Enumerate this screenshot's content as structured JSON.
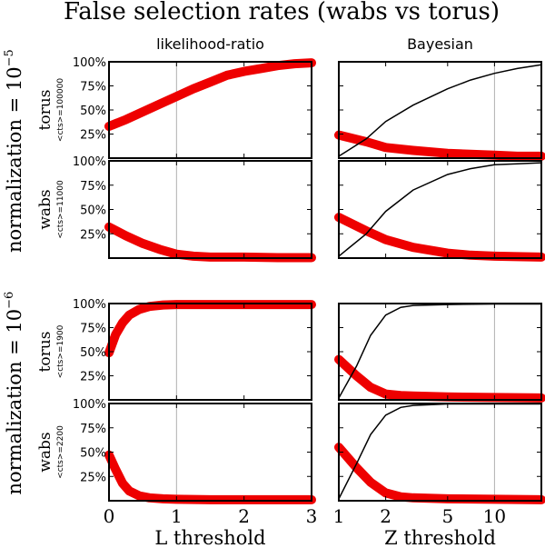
{
  "title": "False selection rates (wabs vs torus)",
  "chart_data": {
    "type": "line",
    "title": "False selection rates (wabs vs torus)",
    "columns": [
      {
        "title": "likelihood-ratio",
        "xlabel": "L threshold",
        "xscale": "linear",
        "xlim": [
          0,
          3
        ],
        "xticks": [
          0,
          1,
          2,
          3
        ],
        "xticklabels": [
          "0",
          "1",
          "2",
          "3"
        ],
        "vline": 1
      },
      {
        "title": "Bayesian",
        "xlabel": "Z threshold",
        "xscale": "log",
        "xlim": [
          1,
          20
        ],
        "xticks": [
          1,
          2,
          5,
          10
        ],
        "xticklabels": [
          "1",
          "2",
          "5",
          "10"
        ],
        "vline": 10
      }
    ],
    "yticklabels": [
      "25%",
      "50%",
      "75%",
      "100%"
    ],
    "ylim": [
      0,
      100
    ],
    "groups": [
      {
        "label": "normalization = ",
        "base": "10",
        "exponent": "−5",
        "rows": [
          0,
          1
        ]
      },
      {
        "label": "normalization = ",
        "base": "10",
        "exponent": "−6",
        "rows": [
          2,
          3
        ]
      }
    ],
    "rows": [
      {
        "model": "torus",
        "counts": "<cts>=100000",
        "lr_red": {
          "x": [
            0,
            0.25,
            0.5,
            0.75,
            1,
            1.25,
            1.5,
            1.75,
            2,
            2.25,
            2.5,
            2.75,
            3
          ],
          "y": [
            33,
            40,
            48,
            56,
            64,
            72,
            79,
            86,
            90,
            93,
            96,
            98,
            99
          ]
        },
        "bayes_red": {
          "x": [
            1,
            1.5,
            2,
            3,
            5,
            7,
            10,
            14,
            20
          ],
          "y": [
            24,
            17,
            11,
            8,
            5,
            4,
            3,
            2,
            2
          ]
        },
        "bayes_black": {
          "x": [
            1,
            1.5,
            2,
            3,
            5,
            7,
            10,
            14,
            20
          ],
          "y": [
            2,
            20,
            38,
            55,
            72,
            81,
            88,
            93,
            97
          ]
        }
      },
      {
        "model": "wabs",
        "counts": "<cts>=11000",
        "lr_red": {
          "x": [
            0,
            0.25,
            0.5,
            0.75,
            1,
            1.25,
            1.5,
            2,
            2.5,
            3
          ],
          "y": [
            32,
            23,
            15,
            9,
            4,
            2,
            1,
            1,
            0.5,
            0.5
          ]
        },
        "bayes_red": {
          "x": [
            1,
            1.5,
            2,
            3,
            5,
            7,
            10,
            14,
            20
          ],
          "y": [
            42,
            28,
            19,
            11,
            5,
            3,
            2,
            1.5,
            1
          ]
        },
        "bayes_black": {
          "x": [
            1,
            1.5,
            2,
            3,
            5,
            7,
            10,
            14,
            20
          ],
          "y": [
            2,
            25,
            48,
            70,
            86,
            92,
            96,
            97,
            98
          ]
        }
      },
      {
        "model": "torus",
        "counts": "<cts>=1900",
        "lr_red": {
          "x": [
            0,
            0.1,
            0.2,
            0.3,
            0.45,
            0.6,
            0.8,
            1,
            1.5,
            2,
            3
          ],
          "y": [
            49,
            68,
            80,
            88,
            94,
            97,
            98.5,
            99,
            99,
            99,
            99
          ]
        },
        "bayes_red": {
          "x": [
            1,
            1.3,
            1.6,
            2,
            2.5,
            3,
            5,
            10,
            20
          ],
          "y": [
            42,
            25,
            13,
            6,
            4.5,
            4,
            3,
            2.5,
            2
          ]
        },
        "bayes_black": {
          "x": [
            1,
            1.3,
            1.6,
            2,
            2.5,
            3,
            5,
            10,
            20
          ],
          "y": [
            2,
            35,
            67,
            88,
            96,
            98,
            99,
            99.5,
            99.5
          ]
        }
      },
      {
        "model": "wabs",
        "counts": "<cts>=2200",
        "lr_red": {
          "x": [
            0,
            0.1,
            0.2,
            0.3,
            0.45,
            0.6,
            0.8,
            1,
            1.5,
            2,
            3
          ],
          "y": [
            47,
            32,
            18,
            10,
            5,
            3,
            2,
            1.5,
            1,
            1,
            1
          ]
        },
        "bayes_red": {
          "x": [
            1,
            1.3,
            1.6,
            2,
            2.5,
            3,
            5,
            10,
            20
          ],
          "y": [
            55,
            34,
            19,
            8,
            4,
            3,
            2,
            1.5,
            1
          ]
        },
        "bayes_black": {
          "x": [
            1,
            1.3,
            1.6,
            2,
            2.5,
            3,
            5,
            10,
            20
          ],
          "y": [
            2,
            38,
            68,
            88,
            96,
            98,
            99.5,
            99.5,
            99.5
          ]
        }
      }
    ],
    "colors": {
      "red": "#ee0000",
      "black": "#000000",
      "vline": "#b0b0b0"
    }
  }
}
